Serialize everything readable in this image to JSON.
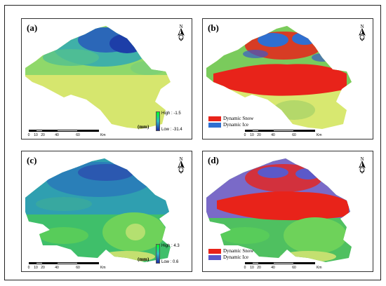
{
  "panels": {
    "a": {
      "letter": "(a)",
      "legend_high": "High : -1.5",
      "legend_low": "Low : -31.4",
      "unit": "(mm)"
    },
    "b": {
      "letter": "(b)",
      "legend_items": [
        {
          "label": "Dynamic Snow",
          "color": "#e8231a"
        },
        {
          "label": "Dynamic Ice",
          "color": "#2f6fd0"
        }
      ]
    },
    "c": {
      "letter": "(c)",
      "legend_high": "High : 4.3",
      "legend_low": "Low : 0.6",
      "unit": "(mm)"
    },
    "d": {
      "letter": "(d)",
      "legend_items": [
        {
          "label": "Dynamic Snow",
          "color": "#e8231a"
        },
        {
          "label": "Dynamic Ice",
          "color": "#5b59c9"
        }
      ]
    }
  },
  "scale": {
    "ticks": [
      "0",
      "10",
      "20",
      "40",
      "60"
    ],
    "unit": "Km"
  },
  "north_label": "N",
  "colors": {
    "ramp_high": "#00ff20",
    "ramp_mid": "#30c0c0",
    "ramp_low": "#1a2aa8",
    "land_yellow": "#d8e870",
    "land_green": "#a8dc5a",
    "snow_red": "#e8231a",
    "ice_blue": "#3b63c9"
  }
}
